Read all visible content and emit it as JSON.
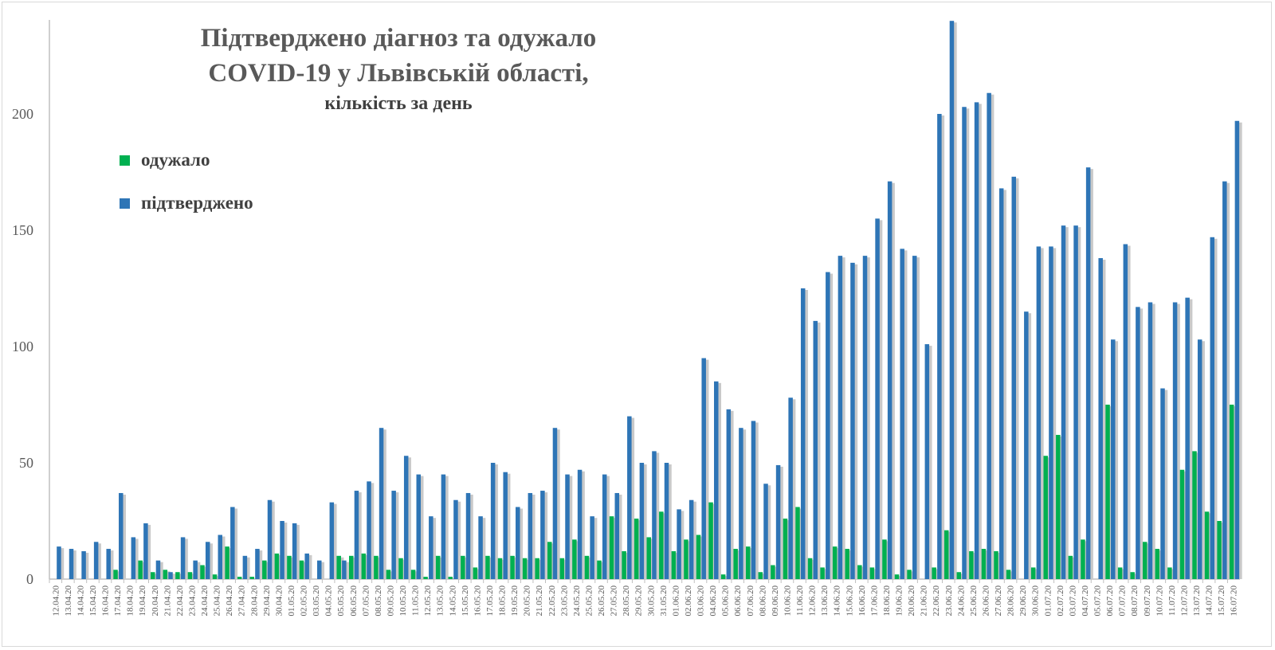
{
  "chart_data": {
    "type": "bar",
    "title_lines": [
      "Підтверджено діагноз та одужало",
      "COVID-19 у Львівській області,"
    ],
    "subtitle": "кількість за день",
    "xlabel": "",
    "ylabel": "",
    "ylim": [
      0,
      240
    ],
    "yticks": [
      0,
      50,
      100,
      150,
      200
    ],
    "grid": false,
    "legend_placement": "top-left",
    "categories": [
      "12.04.20",
      "13.04.20",
      "14.04.20",
      "15.04.20",
      "16.04.20",
      "17.04.20",
      "18.04.20",
      "19.04.20",
      "20.04.20",
      "21.04.20",
      "22.04.20",
      "23.04.20",
      "24.04.20",
      "25.04.20",
      "26.04.20",
      "27.04.20",
      "28.04.20",
      "29.04.20",
      "30.04.20",
      "01.05.20",
      "02.05.20",
      "03.05.20",
      "04.05.20",
      "05.05.20",
      "06.05.20",
      "07.05.20",
      "08.05.20",
      "09.05.20",
      "10.05.20",
      "11.05.20",
      "12.05.20",
      "13.05.20",
      "14.05.20",
      "15.05.20",
      "16.05.20",
      "17.05.20",
      "18.05.20",
      "19.05.20",
      "20.05.20",
      "21.05.20",
      "22.05.20",
      "23.05.20",
      "24.05.20",
      "25.05.20",
      "26.05.20",
      "27.05.20",
      "28.05.20",
      "29.05.20",
      "30.05.20",
      "31.05.20",
      "01.06.20",
      "02.06.20",
      "03.06.20",
      "04.06.20",
      "05.06.20",
      "06.06.20",
      "07.06.20",
      "08.06.20",
      "09.06.20",
      "10.06.20",
      "11.06.20",
      "12.06.20",
      "13.06.20",
      "14.06.20",
      "15.06.20",
      "16.06.20",
      "17.06.20",
      "18.06.20",
      "19.06.20",
      "20.06.20",
      "21.06.20",
      "22.06.20",
      "23.06.20",
      "24.06.20",
      "25.06.20",
      "26.06.20",
      "27.06.20",
      "28.06.20",
      "29.06.20",
      "30.06.20",
      "01.07.20",
      "02.07.20",
      "03.07.20",
      "04.07.20",
      "05.07.20",
      "06.07.20",
      "07.07.20",
      "08.07.20",
      "09.07.20",
      "10.07.20",
      "11.07.20",
      "12.07.20",
      "13.07.20",
      "14.07.20",
      "15.07.20",
      "16.07.20"
    ],
    "series": [
      {
        "name": "одужало",
        "color": "#00b050",
        "values": [
          0,
          0,
          0,
          0,
          0,
          4,
          0,
          8,
          3,
          4,
          3,
          3,
          6,
          2,
          14,
          1,
          1,
          8,
          11,
          10,
          8,
          0,
          0,
          10,
          10,
          11,
          10,
          4,
          9,
          4,
          1,
          10,
          1,
          10,
          5,
          10,
          9,
          10,
          9,
          9,
          16,
          9,
          17,
          10,
          8,
          27,
          12,
          26,
          18,
          29,
          12,
          17,
          19,
          33,
          2,
          13,
          14,
          3,
          6,
          26,
          31,
          9,
          5,
          14,
          13,
          6,
          5,
          17,
          2,
          4,
          0,
          5,
          21,
          3,
          12,
          13,
          12,
          4,
          0,
          5,
          53,
          62,
          10,
          17,
          0,
          75,
          5,
          3,
          16,
          13,
          5,
          47,
          55,
          29,
          25,
          75
        ]
      },
      {
        "name": "підтверджено",
        "color": "#2e75b6",
        "values": [
          14,
          13,
          12,
          16,
          13,
          37,
          18,
          24,
          8,
          3,
          18,
          8,
          16,
          19,
          31,
          10,
          13,
          34,
          25,
          24,
          11,
          8,
          33,
          8,
          38,
          42,
          65,
          38,
          53,
          45,
          27,
          45,
          34,
          37,
          27,
          50,
          46,
          31,
          37,
          38,
          65,
          45,
          47,
          27,
          45,
          37,
          70,
          50,
          55,
          50,
          30,
          34,
          95,
          85,
          73,
          65,
          68,
          41,
          49,
          78,
          125,
          111,
          132,
          139,
          136,
          139,
          155,
          171,
          142,
          139,
          101,
          200,
          240,
          203,
          205,
          209,
          168,
          173,
          115,
          143,
          143,
          152,
          152,
          177,
          138,
          103,
          144,
          117,
          119,
          82,
          119,
          121,
          103,
          147,
          171,
          197
        ]
      }
    ]
  }
}
